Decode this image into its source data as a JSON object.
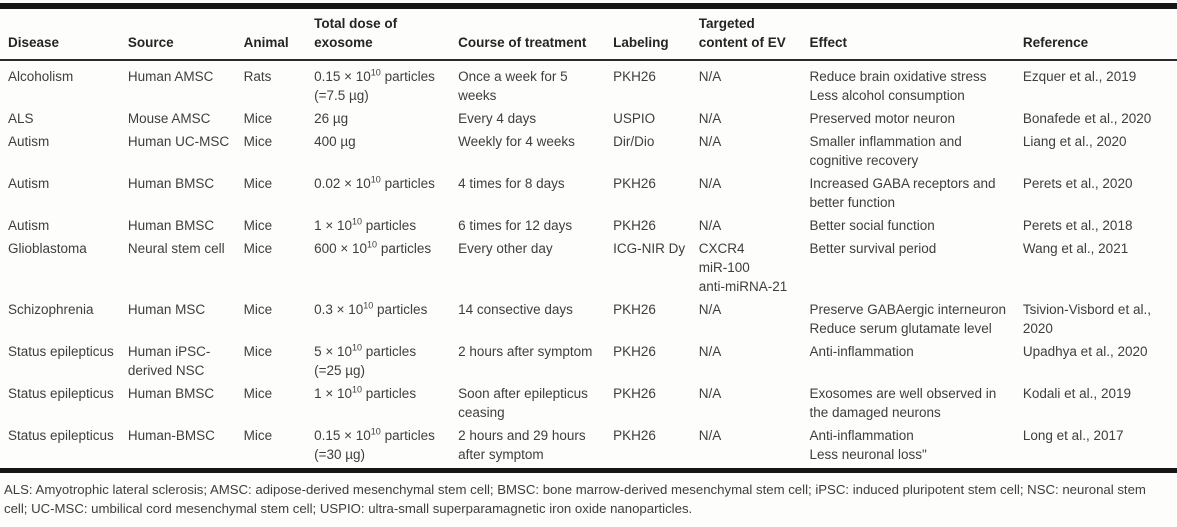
{
  "colors": {
    "text": "#3e3e3e",
    "heading": "#242424",
    "rule": "#161616",
    "background": "#fdfdfc"
  },
  "table": {
    "columns": [
      "Disease",
      "Source",
      "Animal",
      "Total dose of exosome",
      "Course of treatment",
      "Labeling",
      "Targeted content of EV",
      "Effect",
      "Reference"
    ],
    "rows": [
      {
        "disease": "Alcoholism",
        "source": "Human AMSC",
        "animal": "Rats",
        "dose": "0.15 × 10^{10} particles\n(=7.5 µg)",
        "course": "Once a week for 5 weeks",
        "labeling": "PKH26",
        "targeted": "N/A",
        "effect": "Reduce brain oxidative stress\nLess alcohol consumption",
        "reference": "Ezquer et al., 2019"
      },
      {
        "disease": "ALS",
        "source": "Mouse AMSC",
        "animal": "Mice",
        "dose": "26 µg",
        "course": "Every 4 days",
        "labeling": "USPIO",
        "targeted": "N/A",
        "effect": "Preserved motor neuron",
        "reference": "Bonafede et al., 2020"
      },
      {
        "disease": "Autism",
        "source": "Human UC-MSC",
        "animal": "Mice",
        "dose": "400 µg",
        "course": "Weekly for 4 weeks",
        "labeling": "Dir/Dio",
        "targeted": "N/A",
        "effect": "Smaller inflammation and cognitive recovery",
        "reference": "Liang et al., 2020"
      },
      {
        "disease": "Autism",
        "source": "Human BMSC",
        "animal": "Mice",
        "dose": "0.02 × 10^{10} particles",
        "course": "4 times for 8 days",
        "labeling": "PKH26",
        "targeted": "N/A",
        "effect": "Increased GABA receptors and better function",
        "reference": "Perets et al., 2020"
      },
      {
        "disease": "Autism",
        "source": "Human BMSC",
        "animal": "Mice",
        "dose": "1 × 10^{10} particles",
        "course": "6 times for 12 days",
        "labeling": "PKH26",
        "targeted": "N/A",
        "effect": "Better social function",
        "reference": "Perets et al., 2018"
      },
      {
        "disease": "Glioblastoma",
        "source": "Neural stem cell",
        "animal": "Mice",
        "dose": "600 × 10^{10} particles",
        "course": "Every other day",
        "labeling": "ICG-NIR Dy",
        "targeted": "CXCR4\nmiR-100\nanti-miRNA-21",
        "effect": "Better survival period",
        "reference": "Wang et al., 2021"
      },
      {
        "disease": "Schizophrenia",
        "source": "Human MSC",
        "animal": "Mice",
        "dose": "0.3 × 10^{10} particles",
        "course": "14 consective days",
        "labeling": "PKH26",
        "targeted": "N/A",
        "effect": "Preserve GABAergic interneuron\nReduce serum glutamate level",
        "reference": "Tsivion-Visbord et al., 2020"
      },
      {
        "disease": "Status epilepticus",
        "source": "Human iPSC-derived NSC",
        "animal": "Mice",
        "dose": "5 × 10^{10} particles\n(=25 µg)",
        "course": "2 hours after symptom",
        "labeling": "PKH26",
        "targeted": "N/A",
        "effect": "Anti-inflammation",
        "reference": "Upadhya et al., 2020"
      },
      {
        "disease": "Status epilepticus",
        "source": "Human BMSC",
        "animal": "Mice",
        "dose": "1 × 10^{10} particles",
        "course": "Soon after epilepticus ceasing",
        "labeling": "PKH26",
        "targeted": "N/A",
        "effect": "Exosomes are well observed in the damaged neurons",
        "reference": "Kodali et al., 2019"
      },
      {
        "disease": "Status epilepticus",
        "source": "Human-BMSC",
        "animal": "Mice",
        "dose": "0.15 × 10^{10} particles\n(=30 µg)",
        "course": "2 hours and 29 hours after symptom",
        "labeling": "PKH26",
        "targeted": "N/A",
        "effect": "Anti-inflammation\nLess neuronal loss\"",
        "reference": "Long et al., 2017"
      }
    ]
  },
  "footnote": "ALS: Amyotrophic lateral sclerosis; AMSC: adipose-derived mesenchymal stem cell; BMSC: bone marrow-derived mesenchymal stem cell; iPSC: induced pluripotent stem cell; NSC: neuronal stem cell; UC-MSC: umbilical cord mesenchymal stem cell; USPIO: ultra-small superparamagnetic iron oxide nanoparticles."
}
